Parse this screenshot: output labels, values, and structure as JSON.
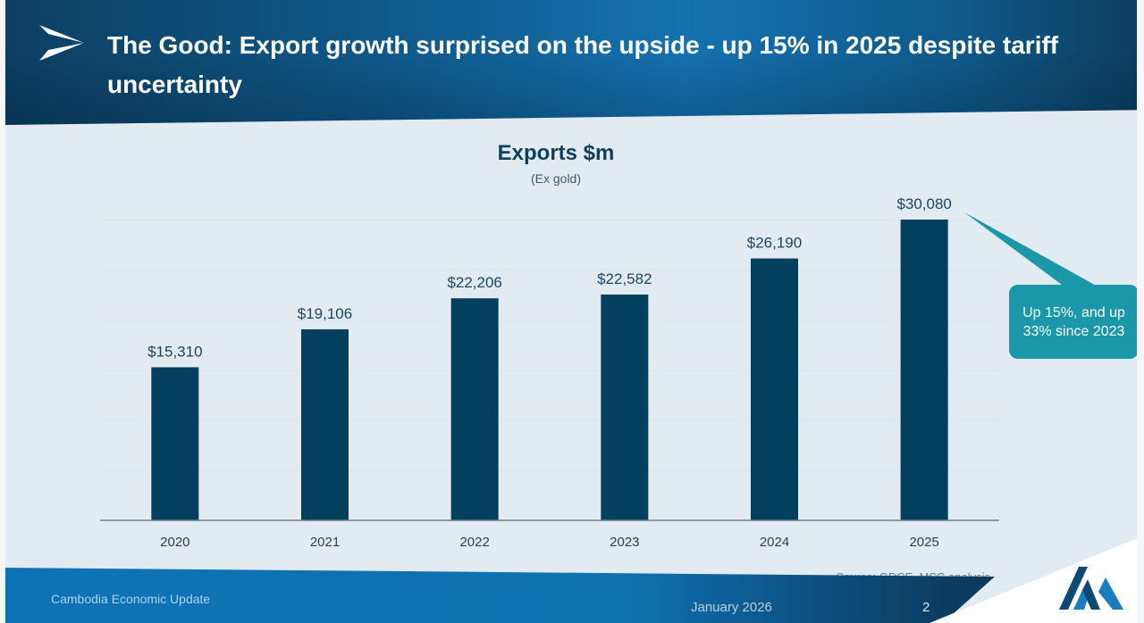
{
  "header": {
    "logo_icon": "arrow-chevron-right-icon",
    "title": "The Good: Export growth surprised on the upside - up 15% in 2025 despite tariff uncertainty"
  },
  "chart_data": {
    "type": "bar",
    "title": "Exports $m",
    "subtitle": "(Ex gold)",
    "categories": [
      "2020",
      "2021",
      "2022",
      "2023",
      "2024",
      "2025"
    ],
    "values": [
      15310,
      19106,
      22206,
      22582,
      26190,
      30080
    ],
    "data_labels": [
      "$15,310",
      "$19,106",
      "$22,206",
      "$22,582",
      "$26,190",
      "$30,080"
    ],
    "xlabel": "",
    "ylabel": "",
    "ylim": [
      0,
      30080
    ],
    "grid": true,
    "grid_interval": 5000,
    "bar_color": "#02405d",
    "annotation": {
      "text": "Up 15%, and up 33% since 2023",
      "target": "2025",
      "color": "#1a98a9"
    }
  },
  "source": "Source: GDCE, MSC analysis",
  "footer": {
    "publication": "Cambodia Economic Update",
    "date": "January 2026",
    "page_number": "2",
    "logo_icon": "msc-m-logo-icon"
  }
}
